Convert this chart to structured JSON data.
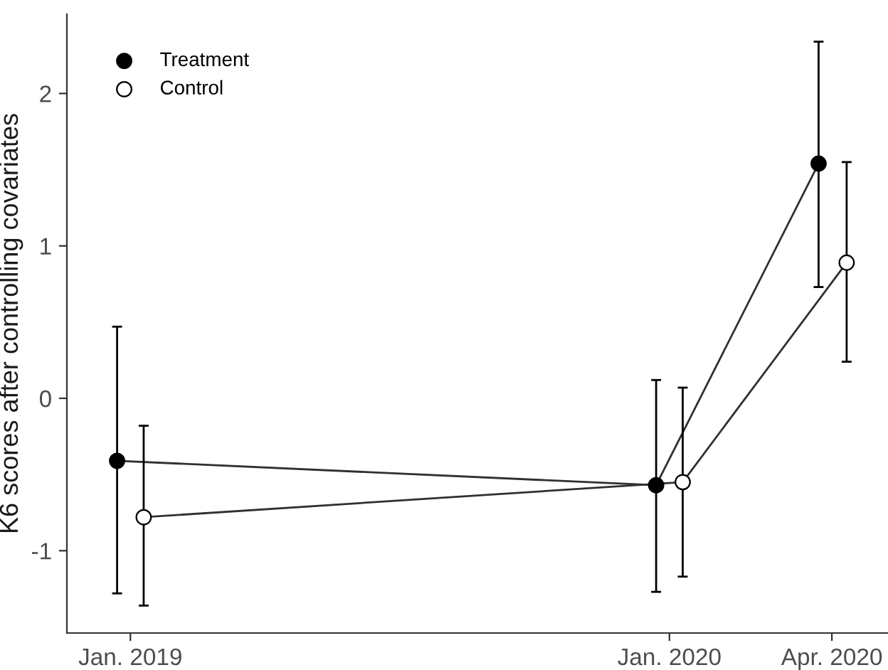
{
  "chart_data": {
    "type": "line",
    "ylabel": "K6 scores after controlling covariates",
    "xlim": [
      "2018-11-19",
      "2020-05-28"
    ],
    "ylim": [
      -1.54,
      2.52
    ],
    "xticks": [
      {
        "value": "2019-01-01",
        "label": "Jan. 2019"
      },
      {
        "value": "2020-01-01",
        "label": "Jan. 2020"
      },
      {
        "value": "2020-04-20",
        "label": "Apr. 2020"
      }
    ],
    "yticks": [
      -1,
      0,
      1,
      2
    ],
    "series": [
      {
        "name": "Treatment",
        "color": "#000000",
        "x": [
          "2018-12-23",
          "2019-12-23",
          "2020-04-11"
        ],
        "values": [
          -0.41,
          -0.57,
          1.54
        ],
        "errors": [
          [
            -1.28,
            0.47
          ],
          [
            -1.27,
            0.12
          ],
          [
            0.73,
            2.34
          ]
        ]
      },
      {
        "name": "Control",
        "color": "#ffffff",
        "x": [
          "2019-01-10",
          "2020-01-10",
          "2020-04-30"
        ],
        "values": [
          -0.78,
          -0.55,
          0.89
        ],
        "errors": [
          [
            -1.36,
            -0.18
          ],
          [
            -1.17,
            0.07
          ],
          [
            0.24,
            1.55
          ]
        ]
      }
    ],
    "marker": "circle",
    "line_style": "solid",
    "grid": false,
    "legend": "top left"
  }
}
